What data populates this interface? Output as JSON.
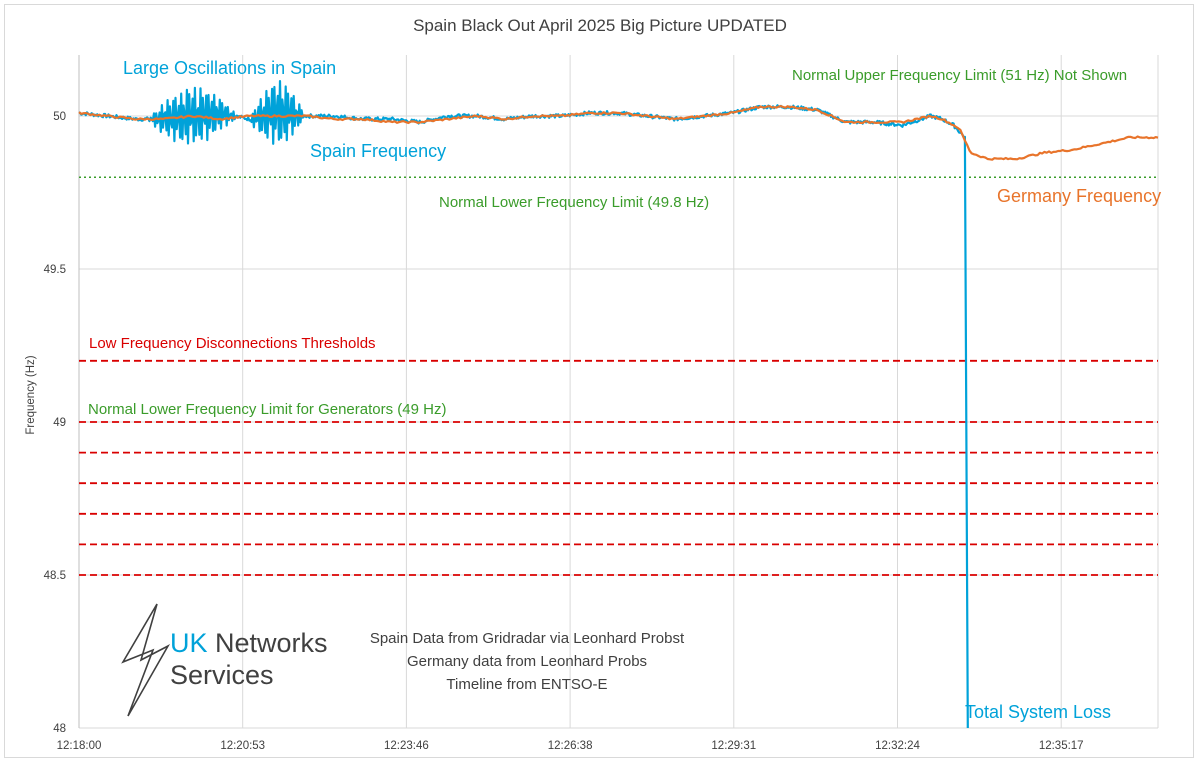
{
  "chart_data": {
    "type": "line",
    "title": "Spain Black Out April 2025 Big Picture UPDATED",
    "xlabel": "",
    "ylabel": "Frequency (Hz)",
    "x_tick_labels": [
      "12:18:00",
      "12:20:53",
      "12:23:46",
      "12:26:38",
      "12:29:31",
      "12:32:24",
      "12:35:17"
    ],
    "x_range_minutes": [
      0,
      19
    ],
    "ylim": [
      48,
      50.2
    ],
    "y_ticks": [
      48,
      48.5,
      49,
      49.5,
      50
    ],
    "y_tick_labels": [
      "48",
      "48.5",
      "49",
      "49.5",
      "50"
    ],
    "grid": true,
    "series": [
      {
        "name": "Spain Frequency",
        "color": "#00a2d9",
        "x": [
          0,
          0.5,
          1,
          1.5,
          2,
          2.5,
          3,
          3.5,
          4,
          4.5,
          5,
          5.5,
          6,
          6.5,
          7,
          7.5,
          8,
          8.5,
          9,
          9.5,
          10,
          10.5,
          11,
          11.5,
          12,
          12.5,
          13,
          13.5,
          14,
          14.5,
          15,
          15.2,
          15.4,
          15.5,
          15.6,
          15.65
        ],
        "values": [
          50.01,
          50.0,
          49.99,
          49.99,
          50.0,
          50.01,
          49.99,
          50.01,
          50.0,
          50.0,
          49.99,
          49.99,
          49.98,
          50.0,
          50.0,
          49.99,
          50.0,
          50.0,
          50.01,
          50.01,
          50.0,
          49.99,
          50.0,
          50.01,
          50.03,
          50.03,
          50.02,
          49.98,
          49.98,
          49.97,
          50.0,
          49.99,
          49.97,
          49.95,
          49.93,
          48.0
        ]
      },
      {
        "name": "Germany Frequency",
        "color": "#e8742b",
        "x": [
          0,
          0.5,
          1,
          1.5,
          2,
          2.5,
          3,
          3.5,
          4,
          4.5,
          5,
          5.5,
          6,
          6.5,
          7,
          7.5,
          8,
          8.5,
          9,
          9.5,
          10,
          10.5,
          11,
          11.5,
          12,
          12.5,
          13,
          13.5,
          14,
          14.5,
          15,
          15.2,
          15.4,
          15.5,
          15.7,
          16,
          16.5,
          17,
          17.5,
          18,
          18.5,
          19
        ],
        "values": [
          50.01,
          50.0,
          49.99,
          49.99,
          50.0,
          49.99,
          50.0,
          50.0,
          50.0,
          49.99,
          49.99,
          49.98,
          49.98,
          49.99,
          50.0,
          49.99,
          50.0,
          50.0,
          50.01,
          50.01,
          50.0,
          49.99,
          50.0,
          50.01,
          50.03,
          50.03,
          50.02,
          49.98,
          49.98,
          49.98,
          50.0,
          49.99,
          49.97,
          49.96,
          49.88,
          49.86,
          49.86,
          49.88,
          49.89,
          49.91,
          49.93,
          49.93
        ]
      }
    ],
    "oscillations": [
      {
        "x_start": 1.2,
        "x_end": 2.8,
        "amplitude": 0.09
      },
      {
        "x_start": 3.0,
        "x_end": 4.0,
        "amplitude": 0.1
      }
    ],
    "reference_lines": [
      {
        "label": "Normal Lower  Frequency Limit  (49.8 Hz)",
        "value": 49.8,
        "style": "dotted",
        "color": "#3a9c2a"
      },
      {
        "label": "Normal Lower Frequency Limit for Generators (49 Hz)",
        "value": 49.0,
        "style": "dashed",
        "color": "#d90000"
      }
    ],
    "threshold_lines": {
      "label": "Low Frequency Disconnections Thresholds",
      "color": "#d90000",
      "values": [
        49.2,
        49.0,
        48.9,
        48.8,
        48.7,
        48.6,
        48.5
      ]
    },
    "annotations": {
      "oscillations": "Large Oscillations in Spain",
      "spain_freq": "Spain Frequency",
      "upper_limit": "Normal Upper Frequency Limit  (51 Hz)  Not Shown",
      "germany_freq": "Germany Frequency",
      "system_loss": "Total System Loss",
      "source_lines": [
        "Spain Data from Gridradar via Leonhard Probst",
        "Germany data from Leonhard Probs",
        "Timeline from ENTSO-E"
      ]
    }
  },
  "logo": {
    "name_line1_part1": "UK",
    "name_line1_part2": " Networks",
    "name_line2": "Services",
    "colors": {
      "uk": "#00a2d9",
      "text": "#404040"
    }
  }
}
